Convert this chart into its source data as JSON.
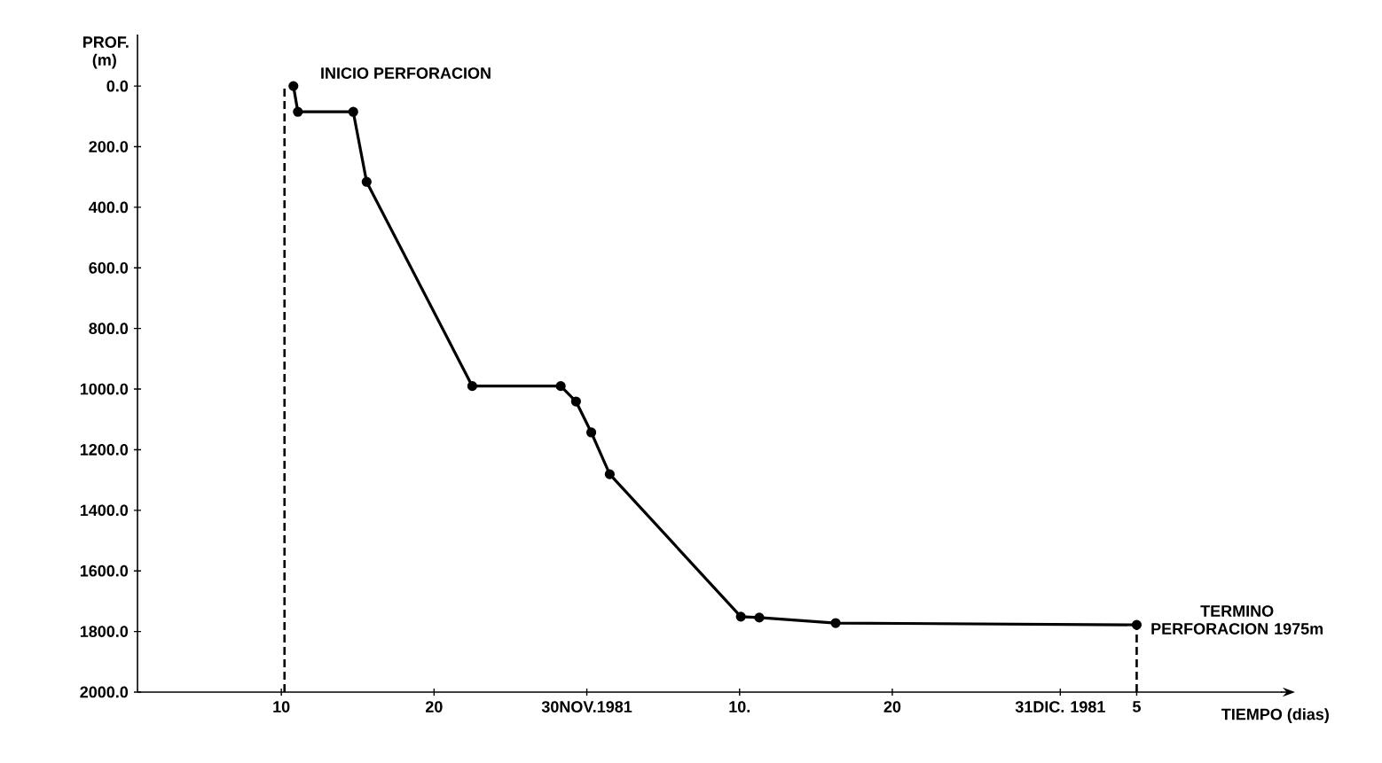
{
  "chart_data": {
    "type": "line",
    "xlabel": "TIEMPO (dias)",
    "ylabel": "PROF. (m)",
    "x": [
      "1981-11-10T19:00",
      "1981-11-11T02:00",
      "1981-11-14T17:00",
      "1981-11-15T14:00",
      "1981-11-22T12:00",
      "1981-11-28T07:00",
      "1981-11-29T07:00",
      "1981-11-30T07:00",
      "1981-12-01T12:00",
      "1981-12-10T02:00",
      "1981-12-11T07:00",
      "1981-12-16T07:00",
      "1982-01-05"
    ],
    "series": [
      {
        "color": "#000000",
        "values": [
          0,
          85,
          85,
          316,
          990,
          990,
          1041,
          1143,
          1281,
          1751,
          1754,
          1772,
          1778
        ]
      }
    ],
    "xlim": [
      "1981-10-31T14:00",
      "1982-01-14T12:00"
    ],
    "ylim": [
      2000,
      -170
    ],
    "xticks": [
      {
        "value": "1981-11-10",
        "label": "10"
      },
      {
        "value": "1981-11-20",
        "label": "20"
      },
      {
        "value": "1981-11-30",
        "label": "30NOV.1981"
      },
      {
        "value": "1981-12-10",
        "label": "10."
      },
      {
        "value": "1981-12-20",
        "label": "20"
      },
      {
        "value": "1981-12-31",
        "label": "31DIC. 1981"
      },
      {
        "value": "1982-01-05",
        "label": "5"
      }
    ],
    "yticks": [
      {
        "value": 0,
        "label": "0.0"
      },
      {
        "value": 200,
        "label": "200.0"
      },
      {
        "value": 400,
        "label": "400.0"
      },
      {
        "value": 600,
        "label": "600.0"
      },
      {
        "value": 800,
        "label": "800.0"
      },
      {
        "value": 1000,
        "label": "1000.0"
      },
      {
        "value": 1200,
        "label": "1200.0"
      },
      {
        "value": 1400,
        "label": "1400.0"
      },
      {
        "value": 1600,
        "label": "1600.0"
      },
      {
        "value": 1800,
        "label": "1800.0"
      },
      {
        "value": 2000,
        "label": "2000.0"
      }
    ],
    "marker": "circle",
    "line_style": "solid",
    "ref_lines": [
      {
        "axis": "x",
        "value": "1981-11-10T05:00",
        "line_style": "dashed"
      },
      {
        "axis": "x",
        "value": "1982-01-05",
        "line_style": "dashed"
      }
    ],
    "annotations": [
      {
        "text": "INICIO PERFORACION",
        "x": "1981-11-10T19:00",
        "y": 0
      },
      {
        "text": "TERMINO PERFORACION 1975m",
        "x": "1982-01-05",
        "y": 1778
      }
    ]
  }
}
